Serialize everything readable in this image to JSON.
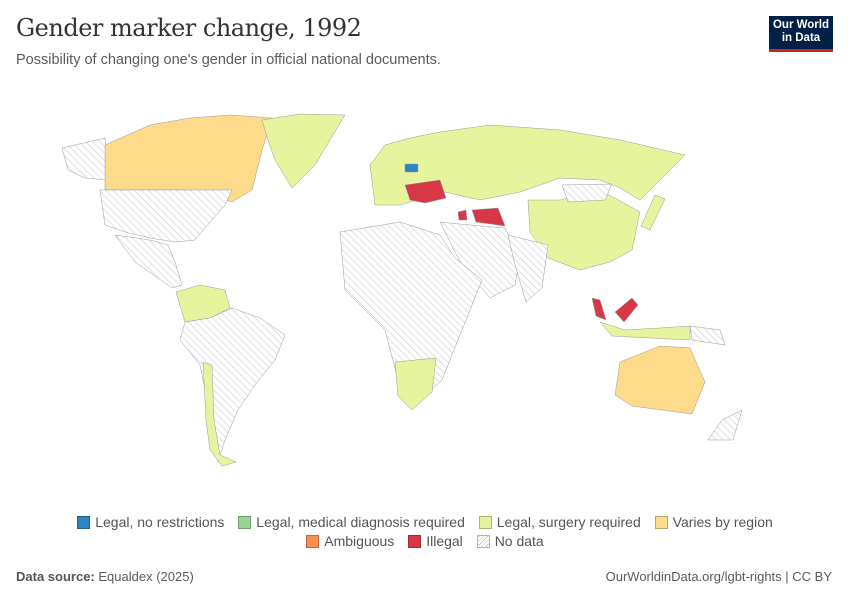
{
  "header": {
    "title": "Gender marker change, 1992",
    "subtitle": "Possibility of changing one's gender in official national documents."
  },
  "logo": {
    "line1": "Our World",
    "line2": "in Data"
  },
  "colors": {
    "legal_no_restrictions": "#2e85c0",
    "medical": "#95d493",
    "surgery": "#e6f59d",
    "varies": "#fedb8b",
    "ambiguous": "#fb8d4e",
    "illegal": "#d73847",
    "no_data_hatch": "#d0d0d0"
  },
  "legend": {
    "row1": [
      {
        "label": "Legal, no restrictions",
        "color": "#2e85c0"
      },
      {
        "label": "Legal, medical diagnosis required",
        "color": "#95d493"
      },
      {
        "label": "Legal, surgery required",
        "color": "#e6f59d"
      },
      {
        "label": "Varies by region",
        "color": "#fedb8b"
      }
    ],
    "row2": [
      {
        "label": "Ambiguous",
        "color": "#fb8d4e"
      },
      {
        "label": "Illegal",
        "color": "#d73847"
      },
      {
        "label": "No data",
        "color": "hatch"
      }
    ]
  },
  "footer": {
    "source_label": "Data source:",
    "source": "Equaldex (2025)",
    "url": "OurWorldinData.org/lgbt-rights | CC BY"
  }
}
